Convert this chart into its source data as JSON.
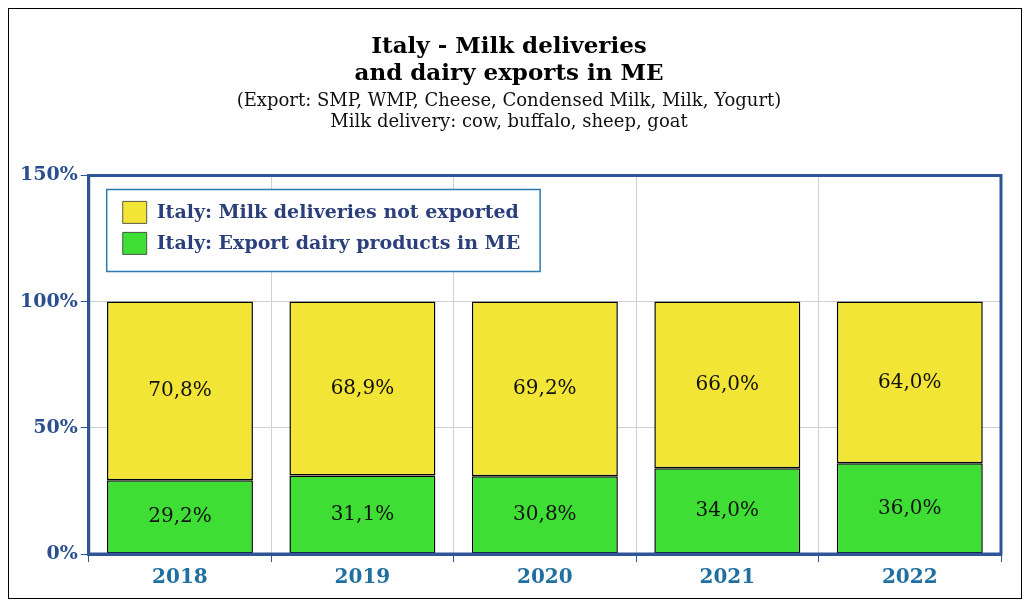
{
  "chart_data": {
    "type": "bar",
    "title": "Italy - Milk deliveries\nand dairy exports in ME",
    "subtitle": "(Export: SMP, WMP, Cheese, Condensed Milk, Milk, Yogurt)\nMilk delivery: cow, buffalo, sheep, goat",
    "categories": [
      "2018",
      "2019",
      "2020",
      "2021",
      "2022"
    ],
    "stacked": true,
    "series": [
      {
        "name": "Italy: Export dairy products in ME",
        "color": "#3ede35",
        "values": [
          29.2,
          31.1,
          30.8,
          34.0,
          36.0
        ],
        "value_labels": [
          "29,2%",
          "31,1%",
          "30,8%",
          "34,0%",
          "36,0%"
        ]
      },
      {
        "name": "Italy: Milk deliveries not exported",
        "color": "#f2e535",
        "values": [
          70.8,
          68.9,
          69.2,
          66.0,
          64.0
        ],
        "value_labels": [
          "70,8%",
          "68,9%",
          "69,2%",
          "66,0%",
          "64,0%"
        ]
      }
    ],
    "ylim": [
      0,
      150
    ],
    "yticks": [
      {
        "value": 0,
        "label": "0%"
      },
      {
        "value": 50,
        "label": "50%"
      },
      {
        "value": 100,
        "label": "100%"
      },
      {
        "value": 150,
        "label": "150%"
      }
    ],
    "grid": true,
    "legend": "top left"
  }
}
